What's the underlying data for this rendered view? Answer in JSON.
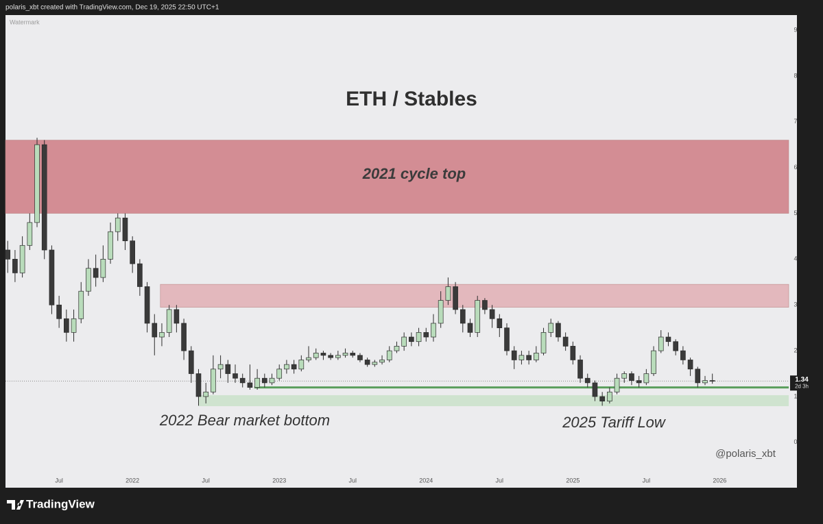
{
  "header": {
    "credit": "polaris_xbt created with TradingView.com, Dec 19, 2025 22:50 UTC+1"
  },
  "footer": {
    "brand": "TradingView"
  },
  "chart_data": {
    "type": "candlestick",
    "title": "ETH / Stables",
    "watermark": "Watermark",
    "signature": "@polaris_xbt",
    "xlim": [
      2021.135,
      2026.47
    ],
    "ylim": [
      -0.99,
      9.33
    ],
    "grid": false,
    "yticks": [
      0,
      1,
      2,
      3,
      4,
      5,
      6,
      7,
      8,
      9
    ],
    "xticks": [
      {
        "value": 2021.5,
        "label": "Jul"
      },
      2022,
      {
        "value": 2022.5,
        "label": "Jul"
      },
      2023,
      {
        "value": 2023.5,
        "label": "Jul"
      },
      2024,
      {
        "value": 2024.5,
        "label": "Jul"
      },
      2025,
      {
        "value": 2025.5,
        "label": "Jul"
      },
      2026
    ],
    "up_color": "#b9dcbb",
    "down_color": "#3a3a3a",
    "wick_color": "#2b2b2b",
    "x": [
      2021.15,
      2021.2,
      2021.25,
      2021.3,
      2021.35,
      2021.4,
      2021.45,
      2021.5,
      2021.55,
      2021.6,
      2021.65,
      2021.7,
      2021.75,
      2021.8,
      2021.85,
      2021.9,
      2021.95,
      2022.0,
      2022.05,
      2022.1,
      2022.15,
      2022.2,
      2022.25,
      2022.3,
      2022.35,
      2022.4,
      2022.45,
      2022.5,
      2022.55,
      2022.6,
      2022.65,
      2022.7,
      2022.75,
      2022.8,
      2022.85,
      2022.9,
      2022.95,
      2023.0,
      2023.05,
      2023.1,
      2023.15,
      2023.2,
      2023.25,
      2023.3,
      2023.35,
      2023.4,
      2023.45,
      2023.5,
      2023.55,
      2023.6,
      2023.65,
      2023.7,
      2023.75,
      2023.8,
      2023.85,
      2023.9,
      2023.95,
      2024.0,
      2024.05,
      2024.1,
      2024.15,
      2024.2,
      2024.25,
      2024.3,
      2024.35,
      2024.4,
      2024.45,
      2024.5,
      2024.55,
      2024.6,
      2024.65,
      2024.7,
      2024.75,
      2024.8,
      2024.85,
      2024.9,
      2024.95,
      2025.0,
      2025.05,
      2025.1,
      2025.15,
      2025.2,
      2025.25,
      2025.3,
      2025.35,
      2025.4,
      2025.45,
      2025.5,
      2025.55,
      2025.6,
      2025.65,
      2025.7,
      2025.75,
      2025.8,
      2025.85,
      2025.9,
      2025.95
    ],
    "ohlc": [
      [
        4.2,
        4.4,
        3.7,
        4.0
      ],
      [
        4.0,
        4.2,
        3.5,
        3.7
      ],
      [
        3.7,
        4.5,
        3.6,
        4.3
      ],
      [
        4.3,
        5.0,
        4.2,
        4.8
      ],
      [
        4.8,
        6.65,
        4.7,
        6.5
      ],
      [
        6.5,
        6.6,
        4.0,
        4.2
      ],
      [
        4.2,
        4.3,
        2.8,
        3.0
      ],
      [
        3.0,
        3.2,
        2.5,
        2.7
      ],
      [
        2.7,
        2.9,
        2.2,
        2.4
      ],
      [
        2.4,
        2.9,
        2.2,
        2.7
      ],
      [
        2.7,
        3.5,
        2.6,
        3.3
      ],
      [
        3.3,
        4.0,
        3.2,
        3.8
      ],
      [
        3.8,
        4.1,
        3.4,
        3.6
      ],
      [
        3.6,
        4.3,
        3.5,
        4.0
      ],
      [
        4.0,
        4.8,
        3.9,
        4.6
      ],
      [
        4.6,
        5.0,
        4.4,
        4.9
      ],
      [
        4.9,
        5.0,
        4.2,
        4.4
      ],
      [
        4.4,
        4.5,
        3.7,
        3.9
      ],
      [
        3.9,
        4.0,
        3.2,
        3.4
      ],
      [
        3.4,
        3.5,
        2.4,
        2.6
      ],
      [
        2.6,
        2.8,
        1.9,
        2.3
      ],
      [
        2.3,
        2.6,
        2.1,
        2.4
      ],
      [
        2.4,
        3.0,
        2.3,
        2.9
      ],
      [
        2.9,
        3.0,
        2.4,
        2.6
      ],
      [
        2.6,
        2.7,
        1.8,
        2.0
      ],
      [
        2.0,
        2.1,
        1.3,
        1.5
      ],
      [
        1.5,
        1.6,
        0.8,
        1.0
      ],
      [
        1.0,
        1.3,
        0.85,
        1.1
      ],
      [
        1.1,
        1.9,
        1.05,
        1.6
      ],
      [
        1.6,
        1.9,
        1.4,
        1.7
      ],
      [
        1.7,
        1.8,
        1.3,
        1.5
      ],
      [
        1.5,
        1.7,
        1.3,
        1.4
      ],
      [
        1.4,
        1.5,
        1.2,
        1.3
      ],
      [
        1.3,
        1.7,
        1.15,
        1.2
      ],
      [
        1.2,
        1.6,
        1.15,
        1.4
      ],
      [
        1.4,
        1.5,
        1.2,
        1.3
      ],
      [
        1.3,
        1.5,
        1.25,
        1.4
      ],
      [
        1.4,
        1.7,
        1.35,
        1.6
      ],
      [
        1.6,
        1.8,
        1.5,
        1.7
      ],
      [
        1.7,
        1.8,
        1.5,
        1.6
      ],
      [
        1.6,
        1.9,
        1.55,
        1.8
      ],
      [
        1.8,
        2.1,
        1.75,
        1.85
      ],
      [
        1.85,
        2.05,
        1.8,
        1.95
      ],
      [
        1.95,
        2.0,
        1.8,
        1.9
      ],
      [
        1.9,
        1.95,
        1.8,
        1.85
      ],
      [
        1.85,
        2.0,
        1.8,
        1.9
      ],
      [
        1.9,
        2.05,
        1.85,
        1.95
      ],
      [
        1.95,
        2.0,
        1.85,
        1.9
      ],
      [
        1.9,
        1.95,
        1.75,
        1.8
      ],
      [
        1.8,
        1.85,
        1.65,
        1.7
      ],
      [
        1.7,
        1.8,
        1.65,
        1.75
      ],
      [
        1.75,
        1.9,
        1.7,
        1.8
      ],
      [
        1.8,
        2.1,
        1.75,
        2.0
      ],
      [
        2.0,
        2.2,
        1.95,
        2.1
      ],
      [
        2.1,
        2.4,
        2.0,
        2.3
      ],
      [
        2.3,
        2.4,
        2.1,
        2.2
      ],
      [
        2.2,
        2.5,
        2.1,
        2.4
      ],
      [
        2.4,
        2.5,
        2.2,
        2.3
      ],
      [
        2.3,
        2.8,
        2.2,
        2.6
      ],
      [
        2.6,
        3.3,
        2.5,
        3.1
      ],
      [
        3.1,
        3.6,
        3.0,
        3.4
      ],
      [
        3.4,
        3.5,
        2.8,
        2.9
      ],
      [
        2.9,
        3.0,
        2.4,
        2.6
      ],
      [
        2.6,
        2.7,
        2.3,
        2.4
      ],
      [
        2.4,
        3.2,
        2.3,
        3.1
      ],
      [
        3.1,
        3.15,
        2.8,
        2.9
      ],
      [
        2.9,
        3.0,
        2.5,
        2.7
      ],
      [
        2.7,
        2.8,
        2.3,
        2.5
      ],
      [
        2.5,
        2.6,
        1.9,
        2.0
      ],
      [
        2.0,
        2.1,
        1.6,
        1.8
      ],
      [
        1.8,
        2.0,
        1.7,
        1.9
      ],
      [
        1.9,
        2.0,
        1.7,
        1.8
      ],
      [
        1.8,
        2.1,
        1.75,
        1.95
      ],
      [
        1.95,
        2.5,
        1.9,
        2.4
      ],
      [
        2.4,
        2.7,
        2.3,
        2.6
      ],
      [
        2.6,
        2.65,
        2.2,
        2.3
      ],
      [
        2.3,
        2.4,
        2.0,
        2.1
      ],
      [
        2.1,
        2.2,
        1.7,
        1.8
      ],
      [
        1.8,
        1.9,
        1.3,
        1.4
      ],
      [
        1.4,
        1.5,
        1.2,
        1.3
      ],
      [
        1.3,
        1.35,
        0.9,
        1.0
      ],
      [
        1.0,
        1.1,
        0.8,
        0.9
      ],
      [
        0.9,
        1.2,
        0.85,
        1.1
      ],
      [
        1.1,
        1.5,
        1.05,
        1.4
      ],
      [
        1.4,
        1.55,
        1.3,
        1.5
      ],
      [
        1.5,
        1.55,
        1.25,
        1.35
      ],
      [
        1.35,
        1.45,
        1.2,
        1.3
      ],
      [
        1.3,
        1.6,
        1.25,
        1.5
      ],
      [
        1.5,
        2.1,
        1.45,
        2.0
      ],
      [
        2.0,
        2.45,
        1.95,
        2.3
      ],
      [
        2.3,
        2.4,
        2.1,
        2.2
      ],
      [
        2.2,
        2.25,
        1.9,
        2.0
      ],
      [
        2.0,
        2.1,
        1.7,
        1.8
      ],
      [
        1.8,
        1.85,
        1.45,
        1.6
      ],
      [
        1.6,
        1.65,
        1.2,
        1.3
      ],
      [
        1.3,
        1.45,
        1.25,
        1.35
      ],
      [
        1.35,
        1.5,
        1.28,
        1.34
      ]
    ],
    "zones": [
      {
        "label": "2021 cycle top",
        "ylim": [
          5.0,
          6.6
        ],
        "xlim": [
          2021.135,
          2026.47
        ],
        "color": "#d38d94"
      },
      {
        "ylim": [
          2.95,
          3.45
        ],
        "xlim": [
          2022.19,
          2026.47
        ],
        "color": "#e3b8bd"
      },
      {
        "ylim": [
          0.79,
          1.03
        ],
        "xlim": [
          2022.45,
          2026.47
        ],
        "color": "#cfe3cf"
      }
    ],
    "support": {
      "value": 1.2,
      "xlim": [
        2022.83,
        2026.47
      ],
      "color": "#5a9e5c"
    },
    "annotations": [
      "2022 Bear market bottom",
      "2025 Tariff Low"
    ],
    "last_price": 1.34,
    "countdown": "2d 3h"
  }
}
